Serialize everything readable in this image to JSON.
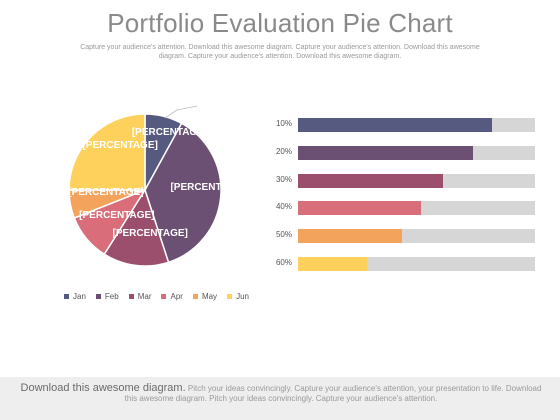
{
  "header": {
    "title": "Portfolio Evaluation Pie Chart",
    "subtitle": "Capture your audience's attention. Download this awesome diagram. Capture your audience's attention. Download this awesome diagram. Capture your audience's attention. Download this awesome diagram."
  },
  "chart_data": [
    {
      "type": "pie",
      "slice_label": "[PERCENTAGE]",
      "categories": [
        "Jan",
        "Feb",
        "Mar",
        "Apr",
        "May",
        "Jun"
      ],
      "values": [
        8,
        37,
        14,
        10,
        6,
        25
      ],
      "colors": [
        "#565980",
        "#6b5073",
        "#9b4f6c",
        "#d96d7a",
        "#f4a35c",
        "#fdd15c"
      ],
      "legend": "bottom"
    },
    {
      "type": "bar",
      "orientation": "horizontal",
      "categories": [
        "10%",
        "20%",
        "30%",
        "40%",
        "50%",
        "60%"
      ],
      "values": [
        0.82,
        0.74,
        0.61,
        0.52,
        0.44,
        0.29
      ],
      "colors": [
        "#565980",
        "#6b5073",
        "#9b4f6c",
        "#d96d7a",
        "#f4a35c",
        "#fdd15c"
      ],
      "track_color": "#d6d6d6",
      "xlim": [
        0,
        1
      ]
    }
  ],
  "footer": {
    "strong": "Download this awesome diagram.",
    "text": " Pitch your ideas convincingly. Capture your audience's attention, your presentation to life. Download this awesome diagram. Pitch your ideas convincingly. Capture your audience's attention."
  }
}
